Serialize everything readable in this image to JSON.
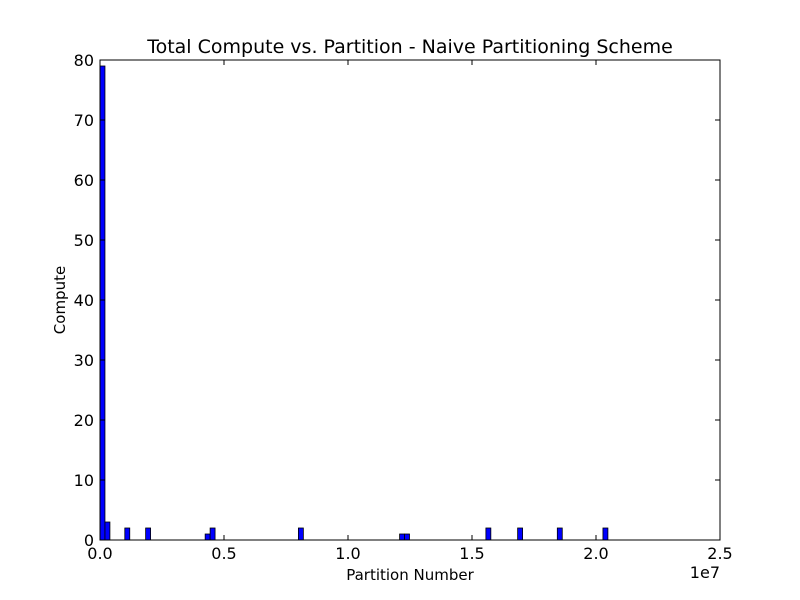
{
  "chart_data": {
    "type": "bar",
    "title": "Total Compute vs. Partition - Naive Partitioning Scheme",
    "xlabel": "Partition Number",
    "ylabel": "Compute",
    "x_offset_label": "1e7",
    "xlim": [
      0,
      25000000
    ],
    "ylim": [
      0,
      80
    ],
    "grid": false,
    "x_ticks": [
      0,
      5000000,
      10000000,
      15000000,
      20000000,
      25000000
    ],
    "x_tick_labels": [
      "0.0",
      "0.5",
      "1.0",
      "1.5",
      "2.0",
      "2.5"
    ],
    "y_ticks": [
      0,
      10,
      20,
      30,
      40,
      50,
      60,
      70,
      80
    ],
    "y_tick_labels": [
      "0",
      "10",
      "20",
      "30",
      "40",
      "50",
      "60",
      "70",
      "80"
    ],
    "bar_color": "#0000ff",
    "bar_edge_color": "#000000",
    "bars": [
      {
        "x_start": 0,
        "x_end": 200000,
        "value": 79
      },
      {
        "x_start": 200000,
        "x_end": 400000,
        "value": 3
      },
      {
        "x_start": 1000000,
        "x_end": 1200000,
        "value": 2
      },
      {
        "x_start": 1840000,
        "x_end": 2040000,
        "value": 2
      },
      {
        "x_start": 4240000,
        "x_end": 4440000,
        "value": 1
      },
      {
        "x_start": 4440000,
        "x_end": 4640000,
        "value": 2
      },
      {
        "x_start": 8000000,
        "x_end": 8200000,
        "value": 2
      },
      {
        "x_start": 12080000,
        "x_end": 12280000,
        "value": 1
      },
      {
        "x_start": 12280000,
        "x_end": 12480000,
        "value": 1
      },
      {
        "x_start": 15560000,
        "x_end": 15760000,
        "value": 2
      },
      {
        "x_start": 16840000,
        "x_end": 17040000,
        "value": 2
      },
      {
        "x_start": 18440000,
        "x_end": 18640000,
        "value": 2
      },
      {
        "x_start": 20280000,
        "x_end": 20480000,
        "value": 2
      }
    ]
  }
}
